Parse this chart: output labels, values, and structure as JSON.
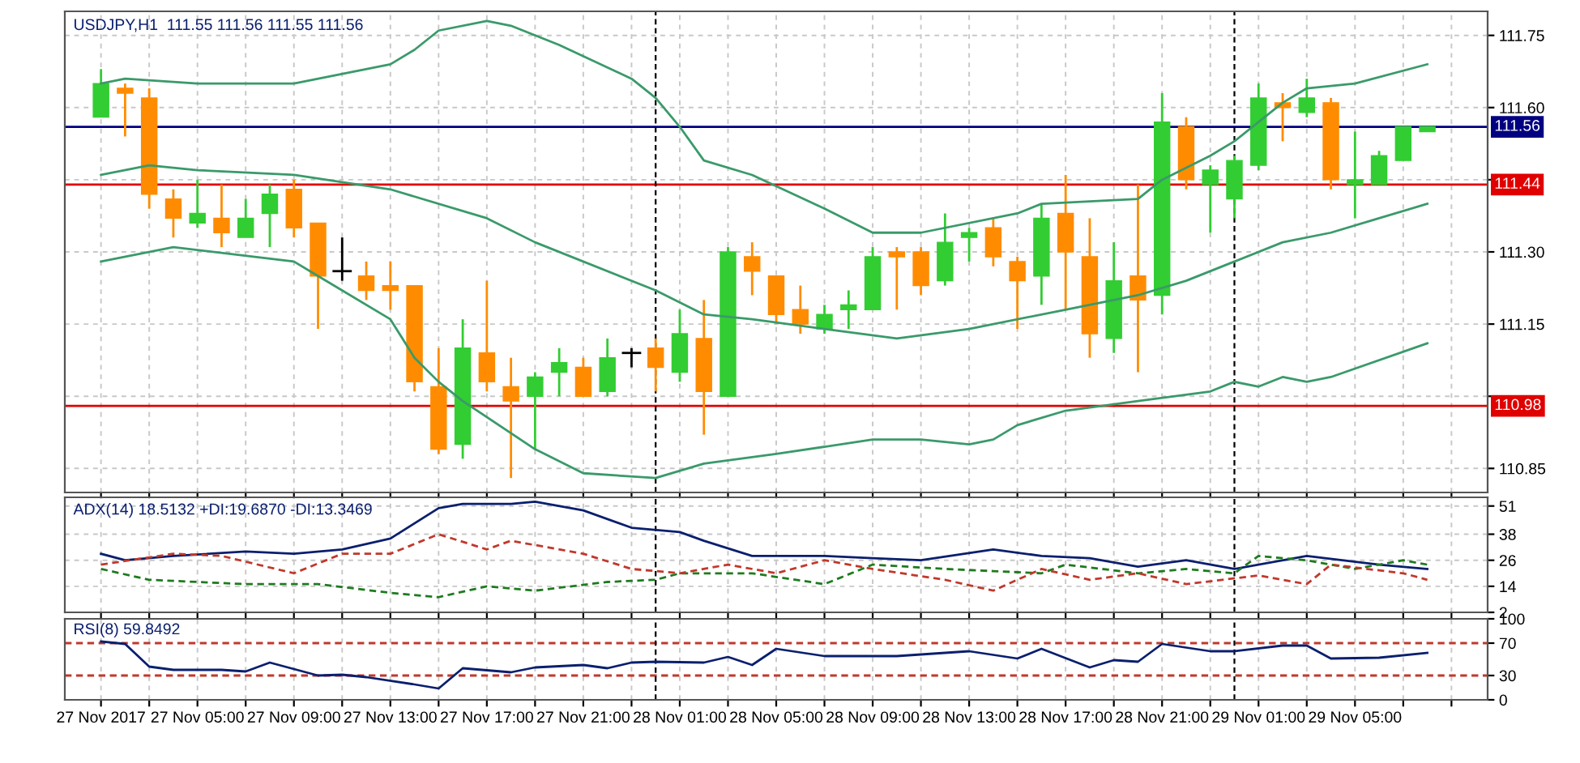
{
  "chart_data": [
    {
      "type": "candlestick",
      "title": "USDJPY,H1  111.55 111.56 111.55 111.56",
      "x": [
        "2017-11-27T01:00",
        "2017-11-27T02:00",
        "2017-11-27T03:00",
        "2017-11-27T04:00",
        "2017-11-27T05:00",
        "2017-11-27T06:00",
        "2017-11-27T07:00",
        "2017-11-27T08:00",
        "2017-11-27T09:00",
        "2017-11-27T10:00",
        "2017-11-27T11:00",
        "2017-11-27T12:00",
        "2017-11-27T13:00",
        "2017-11-27T14:00",
        "2017-11-27T15:00",
        "2017-11-27T16:00",
        "2017-11-27T17:00",
        "2017-11-27T18:00",
        "2017-11-27T19:00",
        "2017-11-27T20:00",
        "2017-11-27T21:00",
        "2017-11-27T22:00",
        "2017-11-27T23:00",
        "2017-11-28T00:00",
        "2017-11-28T01:00",
        "2017-11-28T02:00",
        "2017-11-28T03:00",
        "2017-11-28T04:00",
        "2017-11-28T05:00",
        "2017-11-28T06:00",
        "2017-11-28T07:00",
        "2017-11-28T08:00",
        "2017-11-28T09:00",
        "2017-11-28T10:00",
        "2017-11-28T11:00",
        "2017-11-28T12:00",
        "2017-11-28T13:00",
        "2017-11-28T14:00",
        "2017-11-28T15:00",
        "2017-11-28T16:00",
        "2017-11-28T17:00",
        "2017-11-28T18:00",
        "2017-11-28T19:00",
        "2017-11-28T20:00",
        "2017-11-28T21:00",
        "2017-11-28T22:00",
        "2017-11-28T23:00",
        "2017-11-29T00:00",
        "2017-11-29T01:00",
        "2017-11-29T02:00",
        "2017-11-29T03:00",
        "2017-11-29T04:00",
        "2017-11-29T05:00",
        "2017-11-29T06:00",
        "2017-11-29T07:00",
        "2017-11-29T08:00"
      ],
      "ohlc": [
        [
          111.58,
          111.68,
          111.58,
          111.65
        ],
        [
          111.64,
          111.65,
          111.54,
          111.63
        ],
        [
          111.62,
          111.64,
          111.39,
          111.42
        ],
        [
          111.41,
          111.43,
          111.33,
          111.37
        ],
        [
          111.36,
          111.45,
          111.35,
          111.38
        ],
        [
          111.37,
          111.44,
          111.31,
          111.34
        ],
        [
          111.33,
          111.41,
          111.33,
          111.37
        ],
        [
          111.38,
          111.44,
          111.31,
          111.42
        ],
        [
          111.43,
          111.45,
          111.33,
          111.35
        ],
        [
          111.36,
          111.36,
          111.14,
          111.25
        ],
        [
          111.26,
          111.33,
          111.24,
          111.26
        ],
        [
          111.25,
          111.28,
          111.2,
          111.22
        ],
        [
          111.23,
          111.28,
          111.18,
          111.22
        ],
        [
          111.23,
          111.23,
          111.01,
          111.03
        ],
        [
          111.02,
          111.1,
          110.88,
          110.89
        ],
        [
          110.9,
          111.16,
          110.87,
          111.1
        ],
        [
          111.09,
          111.24,
          111.01,
          111.03
        ],
        [
          111.02,
          111.08,
          110.83,
          110.99
        ],
        [
          111.0,
          111.05,
          110.89,
          111.04
        ],
        [
          111.05,
          111.1,
          111.0,
          111.07
        ],
        [
          111.06,
          111.08,
          111.0,
          111.0
        ],
        [
          111.01,
          111.12,
          111.0,
          111.08
        ],
        [
          111.09,
          111.1,
          111.06,
          111.09
        ],
        [
          111.1,
          111.12,
          111.01,
          111.06
        ],
        [
          111.05,
          111.18,
          111.03,
          111.13
        ],
        [
          111.12,
          111.2,
          110.92,
          111.01
        ],
        [
          111.0,
          111.31,
          111.0,
          111.3
        ],
        [
          111.29,
          111.32,
          111.21,
          111.26
        ],
        [
          111.25,
          111.25,
          111.15,
          111.17
        ],
        [
          111.18,
          111.23,
          111.13,
          111.15
        ],
        [
          111.14,
          111.19,
          111.13,
          111.17
        ],
        [
          111.18,
          111.22,
          111.14,
          111.19
        ],
        [
          111.18,
          111.31,
          111.18,
          111.29
        ],
        [
          111.3,
          111.31,
          111.18,
          111.29
        ],
        [
          111.3,
          111.31,
          111.21,
          111.23
        ],
        [
          111.24,
          111.38,
          111.23,
          111.32
        ],
        [
          111.33,
          111.35,
          111.28,
          111.34
        ],
        [
          111.35,
          111.37,
          111.27,
          111.29
        ],
        [
          111.28,
          111.29,
          111.14,
          111.24
        ],
        [
          111.25,
          111.4,
          111.19,
          111.37
        ],
        [
          111.38,
          111.46,
          111.18,
          111.3
        ],
        [
          111.29,
          111.37,
          111.08,
          111.13
        ],
        [
          111.12,
          111.32,
          111.09,
          111.24
        ],
        [
          111.25,
          111.44,
          111.05,
          111.2
        ],
        [
          111.21,
          111.63,
          111.17,
          111.57
        ],
        [
          111.56,
          111.58,
          111.43,
          111.45
        ],
        [
          111.44,
          111.48,
          111.34,
          111.47
        ],
        [
          111.41,
          111.5,
          111.37,
          111.49
        ],
        [
          111.48,
          111.65,
          111.47,
          111.62
        ],
        [
          111.61,
          111.63,
          111.53,
          111.6
        ],
        [
          111.59,
          111.66,
          111.58,
          111.62
        ],
        [
          111.61,
          111.62,
          111.43,
          111.45
        ],
        [
          111.44,
          111.55,
          111.37,
          111.45
        ],
        [
          111.44,
          111.51,
          111.44,
          111.5
        ],
        [
          111.49,
          111.56,
          111.49,
          111.56
        ],
        [
          111.55,
          111.56,
          111.55,
          111.56
        ]
      ],
      "colors": [
        "#32cd32",
        "#ff8c00",
        "#ff8c00",
        "#ff8c00",
        "#32cd32",
        "#ff8c00",
        "#32cd32",
        "#32cd32",
        "#ff8c00",
        "#ff8c00",
        "#000000",
        "#ff8c00",
        "#ff8c00",
        "#ff8c00",
        "#ff8c00",
        "#32cd32",
        "#ff8c00",
        "#ff8c00",
        "#32cd32",
        "#32cd32",
        "#ff8c00",
        "#32cd32",
        "#000000",
        "#ff8c00",
        "#32cd32",
        "#ff8c00",
        "#32cd32",
        "#ff8c00",
        "#ff8c00",
        "#ff8c00",
        "#32cd32",
        "#32cd32",
        "#32cd32",
        "#ff8c00",
        "#ff8c00",
        "#32cd32",
        "#32cd32",
        "#ff8c00",
        "#ff8c00",
        "#32cd32",
        "#ff8c00",
        "#ff8c00",
        "#32cd32",
        "#ff8c00",
        "#32cd32",
        "#ff8c00",
        "#32cd32",
        "#32cd32",
        "#32cd32",
        "#ff8c00",
        "#32cd32",
        "#ff8c00",
        "#32cd32",
        "#32cd32",
        "#32cd32",
        "#32cd32"
      ],
      "series": [
        {
          "type": "line",
          "color": "#3a9a6a",
          "x": [
            "2017-11-27T01:00",
            "2017-11-27T02:00",
            "2017-11-27T05:00",
            "2017-11-27T09:00",
            "2017-11-27T13:00",
            "2017-11-27T14:00",
            "2017-11-27T15:00",
            "2017-11-27T17:00",
            "2017-11-27T18:00",
            "2017-11-27T20:00",
            "2017-11-27T23:00",
            "2017-11-28T00:00",
            "2017-11-28T01:00",
            "2017-11-28T02:00",
            "2017-11-28T04:00",
            "2017-11-28T07:00",
            "2017-11-28T09:00",
            "2017-11-28T11:00",
            "2017-11-28T15:00",
            "2017-11-28T16:00",
            "2017-11-28T20:00",
            "2017-11-28T21:00",
            "2017-11-28T23:00",
            "2017-11-29T00:00",
            "2017-11-29T01:00",
            "2017-11-29T02:00",
            "2017-11-29T03:00",
            "2017-11-29T05:00",
            "2017-11-29T08:00"
          ],
          "values": [
            111.65,
            111.66,
            111.65,
            111.65,
            111.69,
            111.72,
            111.76,
            111.78,
            111.77,
            111.73,
            111.66,
            111.62,
            111.56,
            111.49,
            111.46,
            111.39,
            111.34,
            111.34,
            111.38,
            111.4,
            111.41,
            111.45,
            111.5,
            111.53,
            111.57,
            111.61,
            111.64,
            111.65,
            111.69
          ]
        },
        {
          "type": "line",
          "color": "#3a9a6a",
          "x": [
            "2017-11-27T01:00",
            "2017-11-27T03:00",
            "2017-11-27T05:00",
            "2017-11-27T09:00",
            "2017-11-27T13:00",
            "2017-11-27T17:00",
            "2017-11-27T19:00",
            "2017-11-28T00:00",
            "2017-11-28T02:00",
            "2017-11-28T04:00",
            "2017-11-28T07:00",
            "2017-11-28T10:00",
            "2017-11-28T13:00",
            "2017-11-28T17:00",
            "2017-11-28T20:00",
            "2017-11-28T22:00",
            "2017-11-29T00:00",
            "2017-11-29T02:00",
            "2017-11-29T04:00",
            "2017-11-29T06:00",
            "2017-11-29T08:00"
          ],
          "values": [
            111.46,
            111.48,
            111.47,
            111.46,
            111.43,
            111.37,
            111.32,
            111.22,
            111.17,
            111.16,
            111.14,
            111.12,
            111.14,
            111.18,
            111.21,
            111.24,
            111.28,
            111.32,
            111.34,
            111.37,
            111.4
          ]
        },
        {
          "type": "line",
          "color": "#3a9a6a",
          "x": [
            "2017-11-27T01:00",
            "2017-11-27T04:00",
            "2017-11-27T09:00",
            "2017-11-27T10:00",
            "2017-11-27T13:00",
            "2017-11-27T14:00",
            "2017-11-27T15:00",
            "2017-11-27T16:00",
            "2017-11-27T19:00",
            "2017-11-27T21:00",
            "2017-11-28T00:00",
            "2017-11-28T02:00",
            "2017-11-28T05:00",
            "2017-11-28T09:00",
            "2017-11-28T11:00",
            "2017-11-28T13:00",
            "2017-11-28T14:00",
            "2017-11-28T15:00",
            "2017-11-28T17:00",
            "2017-11-28T20:00",
            "2017-11-28T23:00",
            "2017-11-29T00:00",
            "2017-11-29T01:00",
            "2017-11-29T02:00",
            "2017-11-29T03:00",
            "2017-11-29T04:00",
            "2017-11-29T08:00"
          ],
          "values": [
            111.28,
            111.31,
            111.28,
            111.25,
            111.16,
            111.08,
            111.03,
            110.99,
            110.89,
            110.84,
            110.83,
            110.86,
            110.88,
            110.91,
            110.91,
            110.9,
            110.91,
            110.94,
            110.97,
            110.99,
            111.01,
            111.03,
            111.02,
            111.04,
            111.03,
            111.04,
            111.11
          ]
        }
      ],
      "xlim": [
        "2017-11-26T23:30",
        "2017-11-29T10:30"
      ],
      "xticks": [
        "2017-11-27T01:00",
        "2017-11-27T03:00",
        "2017-11-27T05:00",
        "2017-11-27T07:00",
        "2017-11-27T09:00",
        "2017-11-27T11:00",
        "2017-11-27T13:00",
        "2017-11-27T15:00",
        "2017-11-27T17:00",
        "2017-11-27T19:00",
        "2017-11-27T21:00",
        "2017-11-27T23:00",
        "2017-11-28T01:00",
        "2017-11-28T03:00",
        "2017-11-28T05:00",
        "2017-11-28T07:00",
        "2017-11-28T09:00",
        "2017-11-28T11:00",
        "2017-11-28T13:00",
        "2017-11-28T15:00",
        "2017-11-28T17:00",
        "2017-11-28T19:00",
        "2017-11-28T21:00",
        "2017-11-28T23:00",
        "2017-11-29T01:00",
        "2017-11-29T03:00",
        "2017-11-29T05:00",
        "2017-11-29T07:00",
        "2017-11-29T09:00"
      ],
      "ylim": [
        110.8,
        111.8
      ],
      "yticks": [
        {
          "value": 110.85,
          "label": "110.85"
        },
        {
          "value": 111.0,
          "label": null
        },
        {
          "value": 111.15,
          "label": "111.15"
        },
        {
          "value": 111.3,
          "label": "111.30"
        },
        {
          "value": 111.45,
          "label": null
        },
        {
          "value": 111.6,
          "label": "111.60"
        },
        {
          "value": 111.75,
          "label": "111.75"
        }
      ],
      "ref_lines": [
        {
          "axis": "y",
          "value": 111.44,
          "label": "111.44",
          "color": "#e00000",
          "line_style": "solid"
        },
        {
          "axis": "y",
          "value": 110.98,
          "label": "110.98",
          "color": "#e00000",
          "line_style": "solid"
        },
        {
          "axis": "y",
          "value": 111.56,
          "label": "111.56",
          "color": "#000080",
          "line_style": "solid"
        },
        {
          "axis": "x",
          "value": "2017-11-28T00:00",
          "color": "#000000",
          "line_style": "dashed"
        },
        {
          "axis": "x",
          "value": "2017-11-29T00:00",
          "color": "#000000",
          "line_style": "dashed"
        }
      ],
      "grid": true,
      "tick_labels": "y"
    },
    {
      "type": "line",
      "title": "ADX(14) 18.5132 +DI:19.6870 -DI:13.3469",
      "series": [
        {
          "color": "#0a1f6e",
          "line_style": "solid",
          "x": [
            "2017-11-27T01:00",
            "2017-11-27T02:00",
            "2017-11-27T04:00",
            "2017-11-27T07:00",
            "2017-11-27T09:00",
            "2017-11-27T11:00",
            "2017-11-27T13:00",
            "2017-11-27T15:00",
            "2017-11-27T16:00",
            "2017-11-27T18:00",
            "2017-11-27T19:00",
            "2017-11-27T21:00",
            "2017-11-27T23:00",
            "2017-11-28T01:00",
            "2017-11-28T02:00",
            "2017-11-28T04:00",
            "2017-11-28T07:00",
            "2017-11-28T09:00",
            "2017-11-28T11:00",
            "2017-11-28T14:00",
            "2017-11-28T16:00",
            "2017-11-28T18:00",
            "2017-11-28T20:00",
            "2017-11-28T22:00",
            "2017-11-29T00:00",
            "2017-11-29T03:00",
            "2017-11-29T06:00",
            "2017-11-29T08:00"
          ],
          "values": [
            29,
            26,
            28,
            30,
            29,
            31,
            36,
            50,
            52,
            52,
            53,
            49,
            41,
            39,
            35,
            28,
            28,
            27,
            26,
            31,
            28,
            27,
            23,
            26,
            22,
            28,
            24,
            22
          ]
        },
        {
          "color": "#1e7b1e",
          "line_style": "dashed",
          "x": [
            "2017-11-27T01:00",
            "2017-11-27T03:00",
            "2017-11-27T05:00",
            "2017-11-27T07:00",
            "2017-11-27T10:00",
            "2017-11-27T13:00",
            "2017-11-27T15:00",
            "2017-11-27T17:00",
            "2017-11-27T19:00",
            "2017-11-27T22:00",
            "2017-11-28T00:00",
            "2017-11-28T01:00",
            "2017-11-28T04:00",
            "2017-11-28T07:00",
            "2017-11-28T09:00",
            "2017-11-28T12:00",
            "2017-11-28T14:00",
            "2017-11-28T16:00",
            "2017-11-28T17:00",
            "2017-11-28T20:00",
            "2017-11-28T22:00",
            "2017-11-29T00:00",
            "2017-11-29T01:00",
            "2017-11-29T03:00",
            "2017-11-29T05:00",
            "2017-11-29T07:00",
            "2017-11-29T08:00"
          ],
          "values": [
            22,
            17,
            16,
            15,
            15,
            11,
            9,
            14,
            12,
            16,
            17,
            20,
            20,
            15,
            24,
            22,
            21,
            20,
            24,
            20,
            22,
            20,
            28,
            26,
            22,
            26,
            24
          ]
        },
        {
          "color": "#c0392b",
          "line_style": "dashed",
          "x": [
            "2017-11-27T01:00",
            "2017-11-27T04:00",
            "2017-11-27T06:00",
            "2017-11-27T09:00",
            "2017-11-27T11:00",
            "2017-11-27T13:00",
            "2017-11-27T15:00",
            "2017-11-27T17:00",
            "2017-11-27T18:00",
            "2017-11-27T21:00",
            "2017-11-27T23:00",
            "2017-11-28T01:00",
            "2017-11-28T03:00",
            "2017-11-28T05:00",
            "2017-11-28T07:00",
            "2017-11-28T09:00",
            "2017-11-28T12:00",
            "2017-11-28T14:00",
            "2017-11-28T16:00",
            "2017-11-28T18:00",
            "2017-11-28T20:00",
            "2017-11-28T22:00",
            "2017-11-29T01:00",
            "2017-11-29T03:00",
            "2017-11-29T04:00",
            "2017-11-29T07:00",
            "2017-11-29T08:00"
          ],
          "values": [
            24,
            29,
            28,
            20,
            29,
            29,
            38,
            31,
            35,
            29,
            22,
            20,
            24,
            20,
            26,
            22,
            17,
            12,
            22,
            17,
            20,
            15,
            19,
            15,
            24,
            20,
            17
          ]
        }
      ],
      "xlim": [
        "2017-11-26T23:30",
        "2017-11-29T10:30"
      ],
      "xticks": [
        "2017-11-27T01:00",
        "2017-11-27T03:00",
        "2017-11-27T05:00",
        "2017-11-27T07:00",
        "2017-11-27T09:00",
        "2017-11-27T11:00",
        "2017-11-27T13:00",
        "2017-11-27T15:00",
        "2017-11-27T17:00",
        "2017-11-27T19:00",
        "2017-11-27T21:00",
        "2017-11-27T23:00",
        "2017-11-28T01:00",
        "2017-11-28T03:00",
        "2017-11-28T05:00",
        "2017-11-28T07:00",
        "2017-11-28T09:00",
        "2017-11-28T11:00",
        "2017-11-28T13:00",
        "2017-11-28T15:00",
        "2017-11-28T17:00",
        "2017-11-28T19:00",
        "2017-11-28T21:00",
        "2017-11-28T23:00",
        "2017-11-29T01:00",
        "2017-11-29T03:00",
        "2017-11-29T05:00",
        "2017-11-29T07:00",
        "2017-11-29T09:00"
      ],
      "ylim": [
        2,
        55
      ],
      "yticks": [
        2,
        14,
        26,
        38,
        51
      ],
      "ref_lines": [
        {
          "axis": "x",
          "value": "2017-11-28T00:00",
          "color": "#000000",
          "line_style": "dashed"
        },
        {
          "axis": "x",
          "value": "2017-11-29T00:00",
          "color": "#000000",
          "line_style": "dashed"
        }
      ],
      "grid": true,
      "tick_labels": "y"
    },
    {
      "type": "line",
      "title": "RSI(8) 59.8492",
      "series": [
        {
          "color": "#0a1f6e",
          "line_style": "solid",
          "x": [
            "2017-11-27T01:00",
            "2017-11-27T02:00",
            "2017-11-27T03:00",
            "2017-11-27T04:00",
            "2017-11-27T06:00",
            "2017-11-27T07:00",
            "2017-11-27T08:00",
            "2017-11-27T10:00",
            "2017-11-27T11:00",
            "2017-11-27T12:00",
            "2017-11-27T14:00",
            "2017-11-27T15:00",
            "2017-11-27T16:00",
            "2017-11-27T18:00",
            "2017-11-27T19:00",
            "2017-11-27T21:00",
            "2017-11-27T22:00",
            "2017-11-27T23:00",
            "2017-11-28T00:00",
            "2017-11-28T02:00",
            "2017-11-28T03:00",
            "2017-11-28T04:00",
            "2017-11-28T05:00",
            "2017-11-28T07:00",
            "2017-11-28T10:00",
            "2017-11-28T13:00",
            "2017-11-28T15:00",
            "2017-11-28T16:00",
            "2017-11-28T18:00",
            "2017-11-28T19:00",
            "2017-11-28T20:00",
            "2017-11-28T21:00",
            "2017-11-28T23:00",
            "2017-11-29T00:00",
            "2017-11-29T02:00",
            "2017-11-29T03:00",
            "2017-11-29T04:00",
            "2017-11-29T06:00",
            "2017-11-29T08:00"
          ],
          "values": [
            72,
            69,
            41,
            37,
            37,
            35,
            46,
            30,
            31,
            28,
            19,
            14,
            39,
            34,
            40,
            43,
            39,
            46,
            47,
            46,
            53,
            43,
            63,
            54,
            54,
            60,
            51,
            63,
            40,
            49,
            47,
            69,
            60,
            60,
            67,
            67,
            51,
            52,
            58
          ]
        }
      ],
      "xlim": [
        "2017-11-26T23:30",
        "2017-11-29T10:30"
      ],
      "xticks": [
        {
          "value": "2017-11-27T01:00",
          "label": "27 Nov 2017"
        },
        {
          "value": "2017-11-27T03:00",
          "label": null
        },
        {
          "value": "2017-11-27T05:00",
          "label": "27 Nov 05:00"
        },
        {
          "value": "2017-11-27T07:00",
          "label": null
        },
        {
          "value": "2017-11-27T09:00",
          "label": "27 Nov 09:00"
        },
        {
          "value": "2017-11-27T11:00",
          "label": null
        },
        {
          "value": "2017-11-27T13:00",
          "label": "27 Nov 13:00"
        },
        {
          "value": "2017-11-27T15:00",
          "label": null
        },
        {
          "value": "2017-11-27T17:00",
          "label": "27 Nov 17:00"
        },
        {
          "value": "2017-11-27T19:00",
          "label": null
        },
        {
          "value": "2017-11-27T21:00",
          "label": "27 Nov 21:00"
        },
        {
          "value": "2017-11-27T23:00",
          "label": null
        },
        {
          "value": "2017-11-28T01:00",
          "label": "28 Nov 01:00"
        },
        {
          "value": "2017-11-28T03:00",
          "label": null
        },
        {
          "value": "2017-11-28T05:00",
          "label": "28 Nov 05:00"
        },
        {
          "value": "2017-11-28T07:00",
          "label": null
        },
        {
          "value": "2017-11-28T09:00",
          "label": "28 Nov 09:00"
        },
        {
          "value": "2017-11-28T11:00",
          "label": null
        },
        {
          "value": "2017-11-28T13:00",
          "label": "28 Nov 13:00"
        },
        {
          "value": "2017-11-28T15:00",
          "label": null
        },
        {
          "value": "2017-11-28T17:00",
          "label": "28 Nov 17:00"
        },
        {
          "value": "2017-11-28T19:00",
          "label": null
        },
        {
          "value": "2017-11-28T21:00",
          "label": "28 Nov 21:00"
        },
        {
          "value": "2017-11-28T23:00",
          "label": null
        },
        {
          "value": "2017-11-29T01:00",
          "label": "29 Nov 01:00"
        },
        {
          "value": "2017-11-29T03:00",
          "label": null
        },
        {
          "value": "2017-11-29T05:00",
          "label": "29 Nov 05:00"
        },
        {
          "value": "2017-11-29T07:00",
          "label": null
        },
        {
          "value": "2017-11-29T09:00",
          "label": null
        }
      ],
      "ylim": [
        0,
        100
      ],
      "yticks": [
        0,
        30,
        70,
        100
      ],
      "ref_lines": [
        {
          "axis": "y",
          "value": 70,
          "color": "#c0392b",
          "line_style": "dashed"
        },
        {
          "axis": "y",
          "value": 30,
          "color": "#c0392b",
          "line_style": "dashed"
        },
        {
          "axis": "x",
          "value": "2017-11-28T00:00",
          "color": "#000000",
          "line_style": "dashed"
        },
        {
          "axis": "x",
          "value": "2017-11-29T00:00",
          "color": "#000000",
          "line_style": "dashed"
        }
      ],
      "grid": "x"
    }
  ]
}
